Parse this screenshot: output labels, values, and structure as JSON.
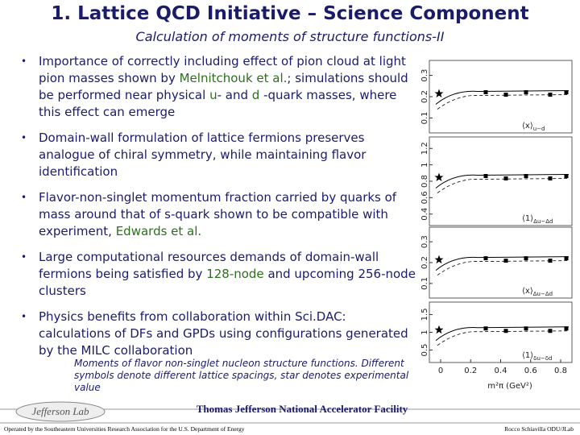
{
  "header": {
    "title": "1. Lattice QCD Initiative – Science Component",
    "subtitle": "Calculation of moments of structure functions-II"
  },
  "bullets": [
    [
      {
        "text": "Importance of correctly including effect of pion cloud at light pion masses shown by "
      },
      {
        "text": "Melnitchouk et al.",
        "color": "#2d6e1f"
      },
      {
        "text": "; simulations should be performed near physical "
      },
      {
        "text": "u",
        "color": "#2d6e1f"
      },
      {
        "text": "- and "
      },
      {
        "text": "d",
        "color": "#2d6e1f"
      },
      {
        "text": " -quark masses, where this effect can emerge"
      }
    ],
    [
      {
        "text": "Domain-wall formulation of lattice fermions preserves analogue of chiral symmetry, while maintaining flavor identification"
      }
    ],
    [
      {
        "text": "Flavor-non-singlet momentum fraction carried by quarks of mass around that of s-quark shown to be compatible with experiment, "
      },
      {
        "text": "Edwards et al.",
        "color": "#2d6e1f"
      }
    ],
    [
      {
        "text": "Large computational resources demands of domain-wall fermions being satisfied by "
      },
      {
        "text": "128-node",
        "color": "#2d6e1f"
      },
      {
        "text": " and upcoming 256-node clusters"
      }
    ],
    [
      {
        "text": "Physics benefits from collaboration within Sci.DAC: calculations of DFs and GPDs using configurations generated by the MILC collaboration"
      }
    ]
  ],
  "figure": {
    "panels": [
      {
        "label": "⟨x⟩",
        "label_sub": "u−d",
        "yticks": [
          0.3,
          0.2,
          0.1
        ]
      },
      {
        "label": "⟨1⟩",
        "label_sub": "Δu−Δd",
        "yticks": [
          1.2,
          1,
          0.8,
          0.6,
          0.4
        ]
      },
      {
        "label": "⟨x⟩",
        "label_sub": "Δu−Δd",
        "yticks": [
          0.3,
          0.2,
          0.1
        ]
      },
      {
        "label": "⟨1⟩",
        "label_sub": "δu−δd",
        "yticks": [
          1.5,
          1,
          0.5
        ]
      }
    ],
    "xticks": [
      0,
      0.2,
      0.4,
      0.6,
      0.8
    ],
    "xlabel": "m²π  (GeV²)",
    "caption": "Moments of flavor non-singlet nucleon structure functions. Different symbols denote different lattice spacings, star denotes experimental value"
  },
  "footer": {
    "logo": "Jefferson Lab",
    "facility": "Thomas Jefferson National Accelerator Facility",
    "operated": "Operated by the Southeastern Universities Research Association for the U.S. Department of Energy",
    "author": "Rocco Schiavilla ODU/JLab"
  }
}
